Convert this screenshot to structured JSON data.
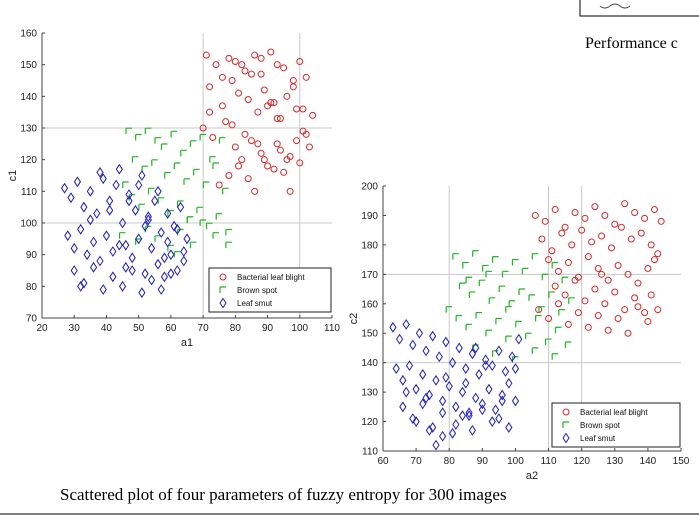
{
  "page": {
    "top_right_partial_text": "Performance c",
    "caption": "Scattered plot of four parameters of fuzzy entropy for 300 images"
  },
  "chart_data": [
    {
      "type": "scatter",
      "xlabel": "a1",
      "ylabel": "c1",
      "xlim": [
        20,
        110
      ],
      "ylim": [
        70,
        160
      ],
      "xticks": [
        20,
        30,
        40,
        50,
        60,
        70,
        80,
        90,
        100,
        110
      ],
      "yticks": [
        70,
        80,
        90,
        100,
        110,
        120,
        130,
        140,
        150,
        160
      ],
      "grid": "partial",
      "legend_position": "bottom-right",
      "series": [
        {
          "name": "Bacterial leaf blight",
          "color": "#d62728",
          "marker": "circle",
          "x": [
            71,
            74,
            78,
            80,
            83,
            86,
            88,
            91,
            93,
            95,
            98,
            100,
            102,
            104,
            72,
            76,
            79,
            81,
            84,
            87,
            89,
            92,
            94,
            96,
            99,
            101,
            103,
            70,
            73,
            77,
            80,
            82,
            85,
            88,
            90,
            93,
            95,
            97,
            100,
            102,
            75,
            78,
            81,
            84,
            86,
            89,
            92,
            94,
            97,
            99,
            101,
            72,
            76,
            79,
            83,
            87,
            90,
            93,
            96,
            98,
            82,
            85,
            88,
            91
          ],
          "y": [
            153,
            150,
            152,
            151,
            148,
            153,
            147,
            154,
            150,
            149,
            143,
            151,
            146,
            134,
            143,
            137,
            145,
            141,
            139,
            135,
            142,
            138,
            133,
            140,
            136,
            129,
            124,
            130,
            127,
            132,
            124,
            120,
            126,
            122,
            118,
            125,
            116,
            121,
            119,
            128,
            112,
            115,
            118,
            114,
            110,
            120,
            117,
            123,
            110,
            126,
            136,
            135,
            146,
            131,
            128,
            125,
            137,
            133,
            120,
            145,
            150,
            147,
            152,
            138
          ]
        },
        {
          "name": "Brown spot",
          "color": "#22b422",
          "marker": "corner",
          "x": [
            47,
            50,
            53,
            56,
            58,
            61,
            64,
            67,
            70,
            73,
            76,
            49,
            52,
            55,
            59,
            62,
            65,
            68,
            71,
            74,
            77,
            46,
            48,
            51,
            54,
            57,
            60,
            63,
            66,
            69,
            72,
            75,
            78,
            45,
            50,
            53,
            56,
            60,
            63,
            67,
            70,
            74,
            78,
            62,
            66
          ],
          "y": [
            129,
            127,
            129,
            126,
            124,
            128,
            122,
            125,
            127,
            120,
            126,
            120,
            117,
            119,
            115,
            118,
            113,
            116,
            112,
            118,
            110,
            112,
            108,
            105,
            110,
            107,
            103,
            106,
            101,
            104,
            99,
            102,
            97,
            96,
            94,
            98,
            95,
            92,
            97,
            93,
            100,
            96,
            93,
            90,
            101
          ]
        },
        {
          "name": "Leaf smut",
          "color": "#1f1fbf",
          "marker": "diamond",
          "x": [
            27,
            29,
            31,
            33,
            35,
            37,
            39,
            41,
            43,
            45,
            47,
            49,
            51,
            53,
            55,
            57,
            59,
            61,
            63,
            65,
            28,
            30,
            32,
            34,
            36,
            38,
            40,
            42,
            44,
            46,
            48,
            50,
            52,
            54,
            56,
            58,
            60,
            62,
            64,
            30,
            33,
            36,
            39,
            42,
            45,
            48,
            51,
            54,
            57,
            60,
            38,
            44,
            50,
            56,
            62,
            35,
            41,
            47,
            53,
            59,
            32,
            46,
            52,
            58,
            64
          ],
          "y": [
            111,
            108,
            113,
            105,
            110,
            103,
            114,
            107,
            112,
            100,
            109,
            104,
            115,
            101,
            107,
            97,
            103,
            99,
            105,
            95,
            96,
            92,
            98,
            90,
            94,
            88,
            96,
            91,
            93,
            86,
            89,
            95,
            84,
            92,
            87,
            83,
            90,
            85,
            88,
            85,
            81,
            86,
            79,
            83,
            80,
            85,
            78,
            82,
            79,
            84,
            116,
            117,
            112,
            110,
            98,
            101,
            104,
            107,
            102,
            94,
            80,
            93,
            99,
            89,
            91
          ]
        }
      ]
    },
    {
      "type": "scatter",
      "xlabel": "a2",
      "ylabel": "c2",
      "xlim": [
        60,
        150
      ],
      "ylim": [
        110,
        200
      ],
      "xticks": [
        60,
        70,
        80,
        90,
        100,
        110,
        120,
        130,
        140,
        150
      ],
      "yticks": [
        110,
        120,
        130,
        140,
        150,
        160,
        170,
        180,
        190,
        200
      ],
      "grid": "partial",
      "legend_position": "bottom-right",
      "series": [
        {
          "name": "Bacterial leaf blight",
          "color": "#d62728",
          "marker": "circle",
          "x": [
            106,
            109,
            112,
            115,
            118,
            121,
            124,
            127,
            130,
            133,
            136,
            139,
            142,
            144,
            108,
            111,
            114,
            117,
            120,
            123,
            126,
            129,
            132,
            135,
            138,
            141,
            143,
            110,
            113,
            116,
            119,
            122,
            125,
            128,
            131,
            134,
            137,
            140,
            142,
            112,
            115,
            118,
            121,
            124,
            127,
            130,
            133,
            136,
            139,
            141,
            107,
            110,
            113,
            116,
            119,
            122,
            125,
            128,
            131,
            134,
            137,
            140,
            143,
            126
          ],
          "y": [
            190,
            188,
            192,
            186,
            191,
            189,
            193,
            190,
            187,
            194,
            191,
            189,
            192,
            188,
            182,
            178,
            184,
            180,
            185,
            181,
            183,
            179,
            186,
            182,
            184,
            180,
            177,
            175,
            171,
            174,
            169,
            176,
            172,
            168,
            173,
            170,
            167,
            172,
            175,
            166,
            163,
            168,
            161,
            165,
            160,
            164,
            158,
            162,
            157,
            163,
            158,
            155,
            160,
            153,
            157,
            152,
            156,
            151,
            155,
            150,
            159,
            154,
            158,
            170
          ]
        },
        {
          "name": "Brown spot",
          "color": "#22b422",
          "marker": "corner",
          "x": [
            82,
            85,
            88,
            91,
            94,
            97,
            100,
            103,
            106,
            109,
            112,
            115,
            84,
            87,
            90,
            93,
            96,
            99,
            102,
            105,
            108,
            111,
            114,
            117,
            80,
            83,
            86,
            89,
            92,
            95,
            98,
            101,
            104,
            107,
            110,
            113,
            116,
            88,
            94,
            100,
            106,
            112,
            86,
            92,
            98
          ],
          "y": [
            176,
            173,
            177,
            172,
            175,
            170,
            174,
            171,
            176,
            169,
            173,
            168,
            166,
            163,
            167,
            161,
            165,
            160,
            164,
            162,
            158,
            163,
            157,
            161,
            158,
            155,
            152,
            156,
            150,
            154,
            148,
            153,
            149,
            155,
            147,
            151,
            146,
            145,
            143,
            141,
            144,
            142,
            168,
            170,
            158
          ]
        },
        {
          "name": "Leaf smut",
          "color": "#1f1fbf",
          "marker": "diamond",
          "x": [
            63,
            65,
            67,
            69,
            71,
            73,
            75,
            77,
            79,
            81,
            83,
            85,
            87,
            89,
            91,
            93,
            95,
            97,
            99,
            101,
            64,
            66,
            68,
            70,
            72,
            74,
            76,
            78,
            80,
            82,
            84,
            86,
            88,
            90,
            92,
            94,
            96,
            98,
            100,
            66,
            69,
            72,
            75,
            78,
            81,
            84,
            87,
            90,
            93,
            96,
            70,
            74,
            78,
            82,
            86,
            67,
            73,
            79,
            85,
            91,
            95,
            98,
            100,
            88,
            76
          ],
          "y": [
            152,
            148,
            153,
            146,
            150,
            144,
            149,
            142,
            147,
            140,
            145,
            138,
            143,
            136,
            141,
            139,
            144,
            137,
            142,
            148,
            138,
            134,
            139,
            131,
            136,
            129,
            134,
            127,
            132,
            125,
            130,
            123,
            128,
            126,
            131,
            124,
            129,
            133,
            127,
            125,
            121,
            126,
            118,
            123,
            116,
            122,
            117,
            124,
            120,
            127,
            120,
            117,
            115,
            119,
            122,
            130,
            128,
            135,
            133,
            139,
            121,
            118,
            138,
            145,
            112
          ]
        }
      ]
    }
  ]
}
